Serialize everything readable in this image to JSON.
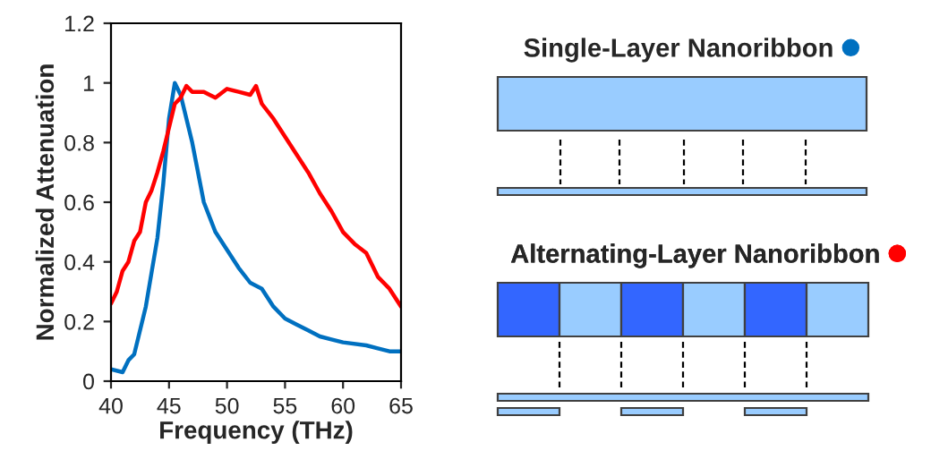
{
  "chart_data": {
    "type": "line",
    "xlabel": "Frequency (THz)",
    "ylabel": "Normalized Attenuation",
    "xlim": [
      40,
      65
    ],
    "xticks": [
      40,
      45,
      50,
      55,
      60,
      65
    ],
    "ylim": [
      0,
      1.2
    ],
    "yticks": [
      0,
      0.2,
      0.4,
      0.6,
      0.8,
      1,
      1.2
    ],
    "grid": false,
    "legend": "right",
    "marker": "none",
    "line_style": "solid",
    "series": [
      {
        "name": "Single-Layer Nanoribbon",
        "color": "#0070c0",
        "x": [
          40,
          41,
          41.5,
          42,
          43,
          44,
          44.5,
          45,
          45.5,
          46,
          47,
          48,
          49,
          50,
          51,
          52,
          53,
          54,
          55,
          56,
          57,
          58,
          59,
          60,
          62,
          63,
          64,
          65
        ],
        "values": [
          0.04,
          0.03,
          0.07,
          0.09,
          0.25,
          0.48,
          0.66,
          0.88,
          1.0,
          0.96,
          0.8,
          0.6,
          0.5,
          0.44,
          0.38,
          0.33,
          0.31,
          0.25,
          0.21,
          0.19,
          0.17,
          0.15,
          0.14,
          0.13,
          0.12,
          0.11,
          0.1,
          0.1
        ]
      },
      {
        "name": "Alternating-Layer Nanoribbon",
        "color": "#ff0000",
        "x": [
          40,
          40.5,
          41,
          41.5,
          42,
          42.5,
          43,
          43.5,
          44,
          44.5,
          45,
          45.5,
          46,
          46.5,
          47,
          48,
          49,
          50,
          51,
          52,
          52.5,
          53,
          54,
          55,
          56,
          57,
          58,
          59,
          60,
          61,
          62,
          63,
          64,
          65
        ],
        "values": [
          0.26,
          0.3,
          0.37,
          0.4,
          0.47,
          0.5,
          0.6,
          0.64,
          0.7,
          0.77,
          0.85,
          0.93,
          0.95,
          0.99,
          0.97,
          0.97,
          0.95,
          0.98,
          0.97,
          0.96,
          0.99,
          0.93,
          0.88,
          0.82,
          0.76,
          0.7,
          0.63,
          0.57,
          0.5,
          0.46,
          0.43,
          0.35,
          0.31,
          0.25
        ]
      }
    ]
  }
}
